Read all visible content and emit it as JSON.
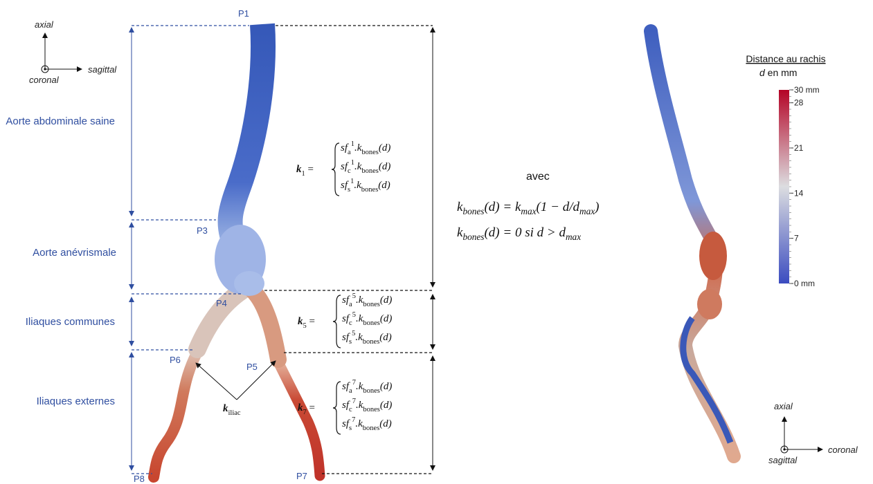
{
  "left_axes": {
    "up": "axial",
    "right": "sagittal",
    "out": "coronal"
  },
  "points": [
    "P1",
    "P3",
    "P4",
    "P5",
    "P6",
    "P7",
    "P8"
  ],
  "regions": [
    "Aorte abdominale saine",
    "Aorte anévrismale",
    "Iliaques communes",
    "Iliaques externes"
  ],
  "formulas": [
    {
      "label": [
        [
          "k",
          "bi"
        ],
        [
          "1",
          "sub"
        ],
        [
          " ="
        ]
      ],
      "lines": [
        [
          [
            "sf",
            "i"
          ],
          [
            "a",
            "sub"
          ],
          [
            "1",
            "sup"
          ],
          [
            ".k",
            "i"
          ],
          [
            "bones",
            "sub"
          ],
          [
            "(d)",
            "i"
          ]
        ],
        [
          [
            "sf",
            "i"
          ],
          [
            "c",
            "sub"
          ],
          [
            "1",
            "sup"
          ],
          [
            ".k",
            "i"
          ],
          [
            "bones",
            "sub"
          ],
          [
            "(d)",
            "i"
          ]
        ],
        [
          [
            "sf",
            "i"
          ],
          [
            "s",
            "sub"
          ],
          [
            "1",
            "sup"
          ],
          [
            ".k",
            "i"
          ],
          [
            "bones",
            "sub"
          ],
          [
            "(d)",
            "i"
          ]
        ]
      ]
    },
    {
      "label": [
        [
          "k",
          "bi"
        ],
        [
          "5",
          "sub"
        ],
        [
          " ="
        ]
      ],
      "lines": [
        [
          [
            "sf",
            "i"
          ],
          [
            "a",
            "sub"
          ],
          [
            "5",
            "sup"
          ],
          [
            ".k",
            "i"
          ],
          [
            "bones",
            "sub"
          ],
          [
            "(d)",
            "i"
          ]
        ],
        [
          [
            "sf",
            "i"
          ],
          [
            "c",
            "sub"
          ],
          [
            "5",
            "sup"
          ],
          [
            ".k",
            "i"
          ],
          [
            "bones",
            "sub"
          ],
          [
            "(d)",
            "i"
          ]
        ],
        [
          [
            "sf",
            "i"
          ],
          [
            "s",
            "sub"
          ],
          [
            "5",
            "sup"
          ],
          [
            ".k",
            "i"
          ],
          [
            "bones",
            "sub"
          ],
          [
            "(d)",
            "i"
          ]
        ]
      ]
    },
    {
      "label": [
        [
          "k",
          "bi"
        ],
        [
          "7",
          "sub"
        ],
        [
          " ="
        ]
      ],
      "lines": [
        [
          [
            "sf",
            "i"
          ],
          [
            "a",
            "sub"
          ],
          [
            "7",
            "sup"
          ],
          [
            ".k",
            "i"
          ],
          [
            "bones",
            "sub"
          ],
          [
            "(d)",
            "i"
          ]
        ],
        [
          [
            "sf",
            "i"
          ],
          [
            "c",
            "sub"
          ],
          [
            "7",
            "sup"
          ],
          [
            ".k",
            "i"
          ],
          [
            "bones",
            "sub"
          ],
          [
            "(d)",
            "i"
          ]
        ],
        [
          [
            "sf",
            "i"
          ],
          [
            "s",
            "sub"
          ],
          [
            "7",
            "sup"
          ],
          [
            ".k",
            "i"
          ],
          [
            "bones",
            "sub"
          ],
          [
            "(d)",
            "i"
          ]
        ]
      ]
    }
  ],
  "k_iliac": [
    [
      "k",
      "bi"
    ],
    [
      "iliac",
      "sub"
    ]
  ],
  "definition": {
    "intro": "avec",
    "equations": [
      [
        [
          "k",
          "i"
        ],
        [
          "bones",
          "sub"
        ],
        [
          "(d) = ",
          "i"
        ],
        [
          "k",
          "i"
        ],
        [
          "max",
          "sub"
        ],
        [
          "(1 − d/d",
          "i"
        ],
        [
          "max",
          "sub"
        ],
        [
          ")",
          "i"
        ]
      ],
      [
        [
          "k",
          "i"
        ],
        [
          "bones",
          "sub"
        ],
        [
          "(d) = 0   si  d > d",
          "i"
        ],
        [
          "max",
          "sub"
        ]
      ]
    ]
  },
  "colorbar": {
    "title": "Distance au rachis",
    "subtitle": [
      [
        "d",
        "i"
      ],
      [
        " en mm"
      ]
    ],
    "range": [
      0,
      30
    ],
    "ticks": [
      {
        "value": 30,
        "label": "30 mm"
      },
      28,
      21,
      14,
      7,
      {
        "value": 0,
        "label": "0 mm"
      }
    ]
  },
  "right_axes": {
    "up": "axial",
    "right": "coronal",
    "out": "sagittal"
  }
}
